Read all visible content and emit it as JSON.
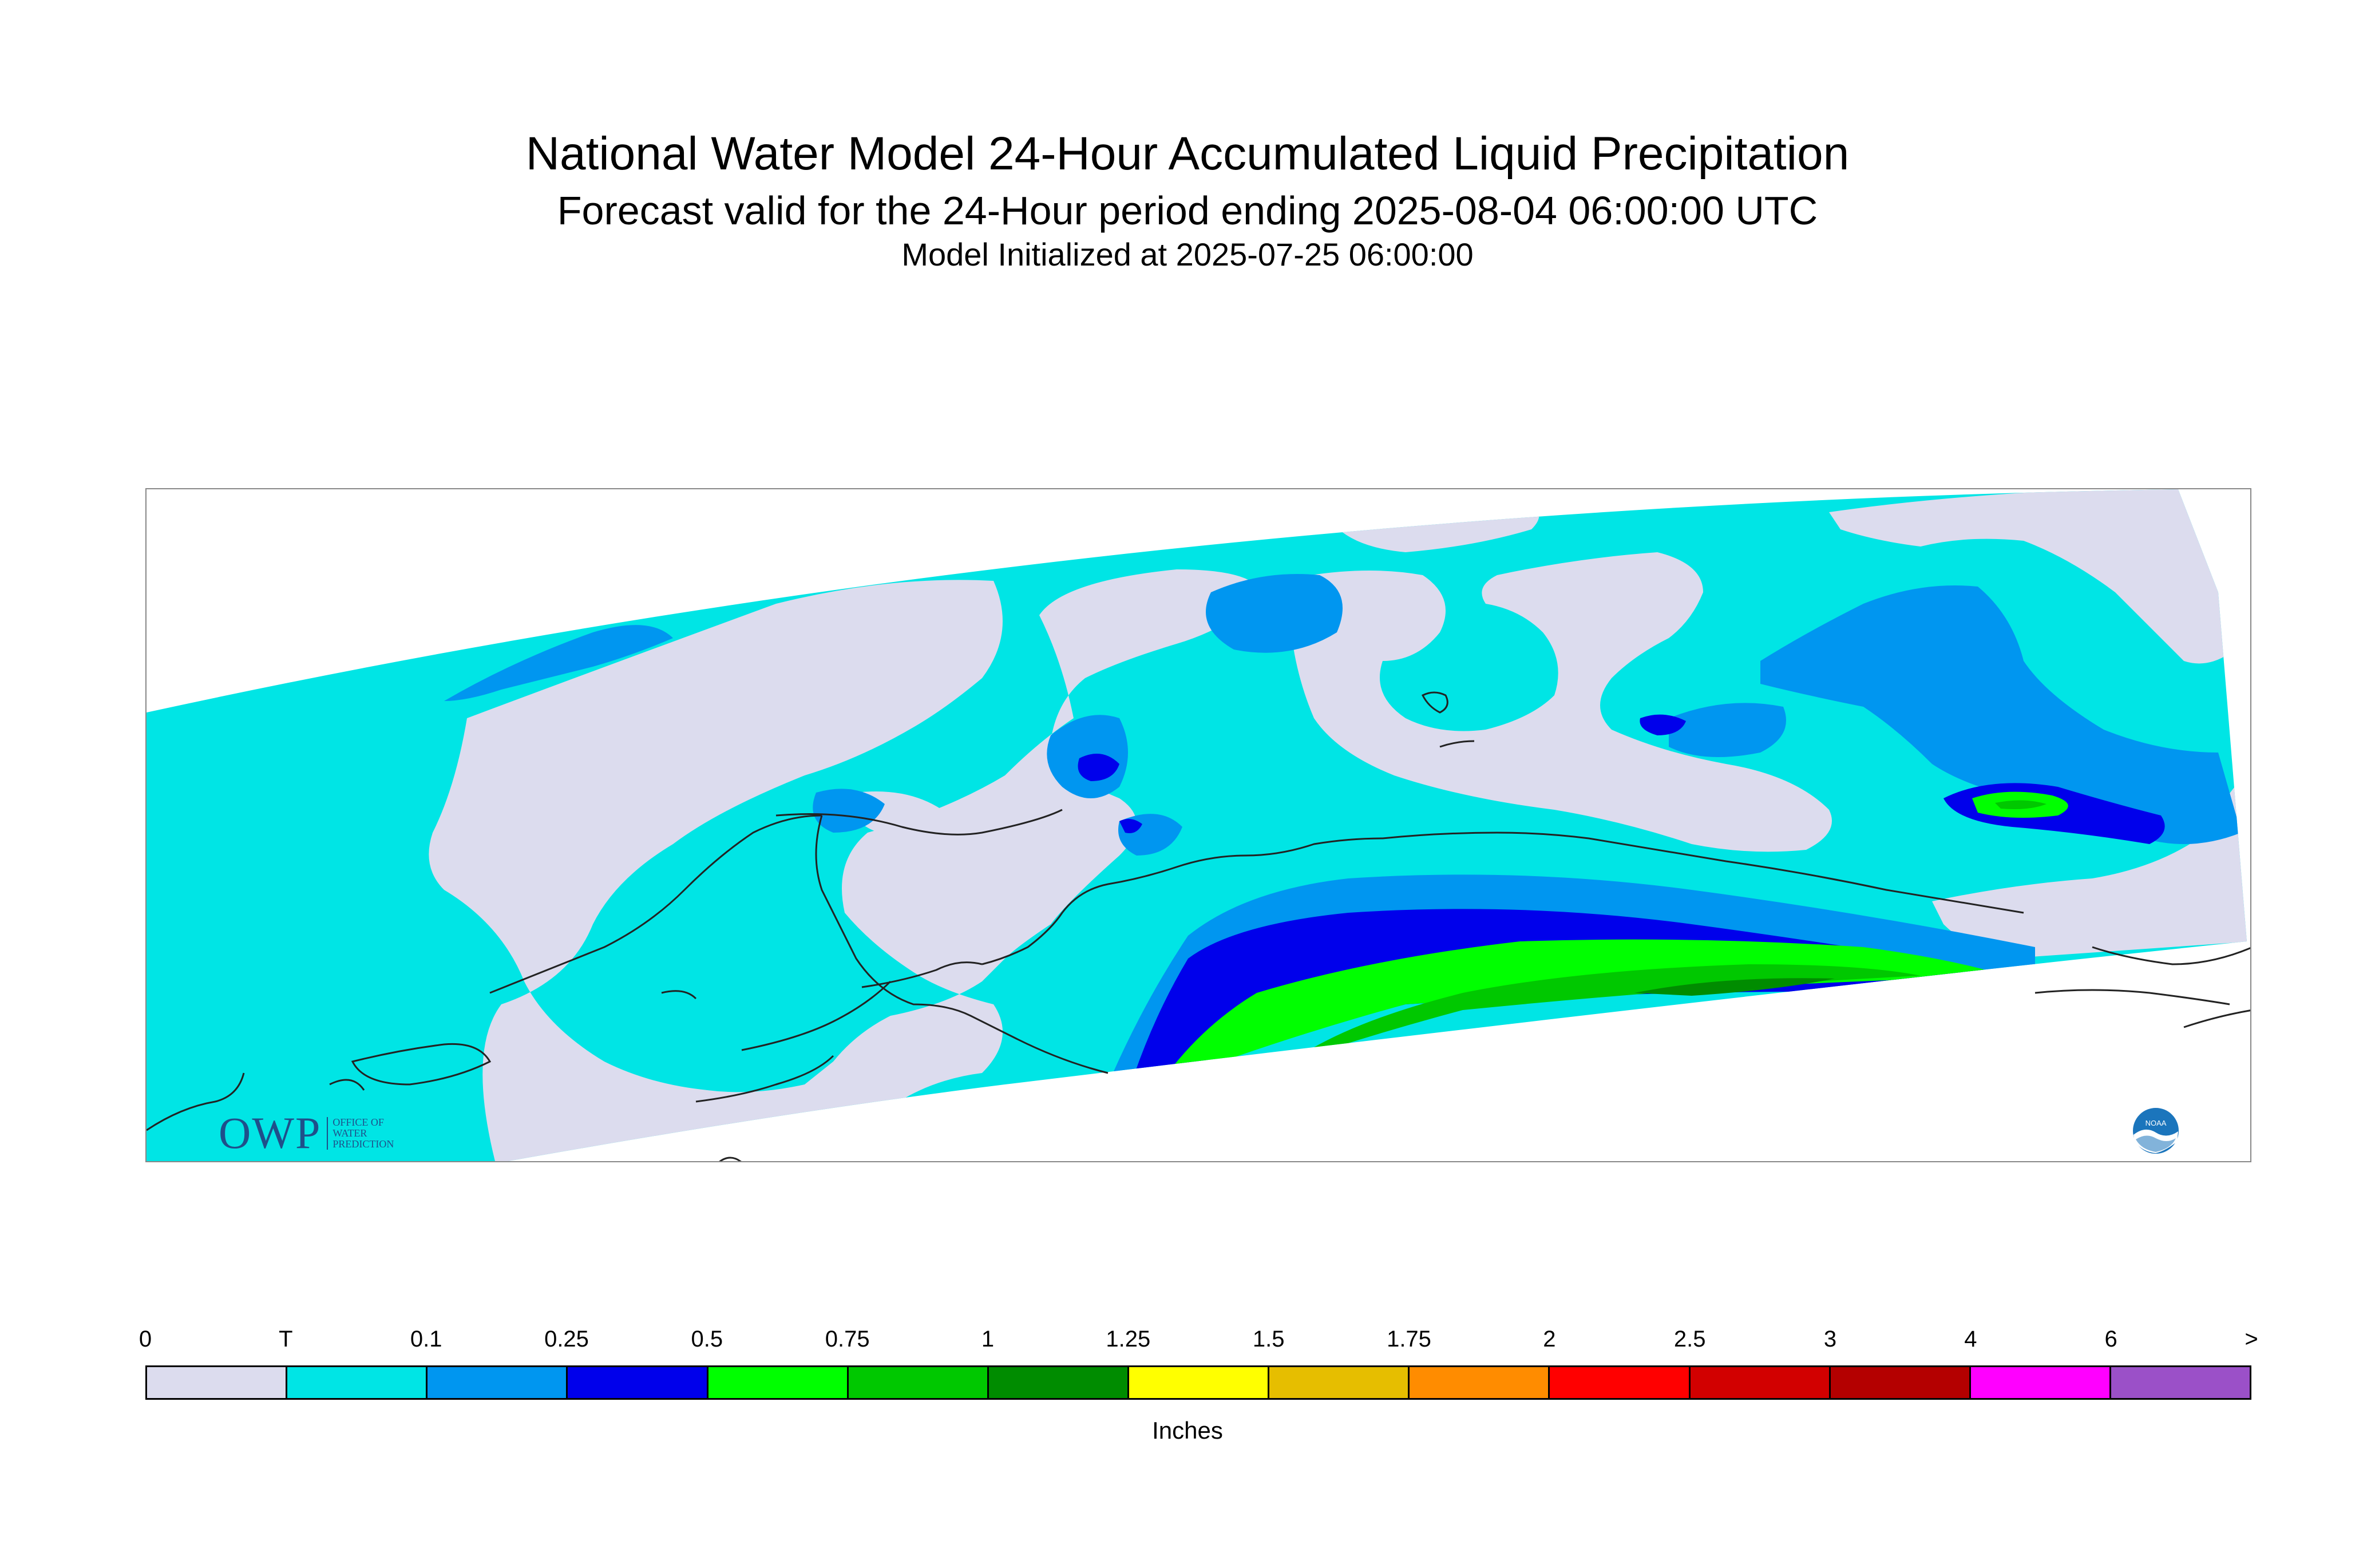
{
  "header": {
    "title": "National Water Model 24-Hour Accumulated Liquid Precipitation",
    "subtitle": "Forecast valid for the 24-Hour period ending 2025-08-04 06:00:00 UTC",
    "init": "Model Initialized at 2025-07-25 06:00:00"
  },
  "map": {
    "region_icon": "alaska-map",
    "colors": {
      "background": "#ffffff",
      "no_data_outline": "#888888",
      "coastline": "#222222"
    }
  },
  "logos": {
    "owp": {
      "letters": "OWP",
      "sub": [
        "OFFICE OF",
        "WATER",
        "PREDICTION"
      ]
    },
    "noaa": {
      "text": "NOAA",
      "icon": "noaa-logo-icon"
    }
  },
  "legend": {
    "labels": [
      "0",
      "T",
      "0.1",
      "0.25",
      "0.5",
      "0.75",
      "1",
      "1.25",
      "1.5",
      "1.75",
      "2",
      "2.5",
      "3",
      "4",
      "6",
      ">"
    ],
    "colors": [
      "#dcdcee",
      "#00e5e5",
      "#0096f0",
      "#0000eb",
      "#00ff00",
      "#00c800",
      "#008c00",
      "#ffff00",
      "#e6be00",
      "#ff8c00",
      "#ff0000",
      "#d20000",
      "#b40000",
      "#ff00ff",
      "#9b50c8"
    ],
    "unit": "Inches"
  }
}
